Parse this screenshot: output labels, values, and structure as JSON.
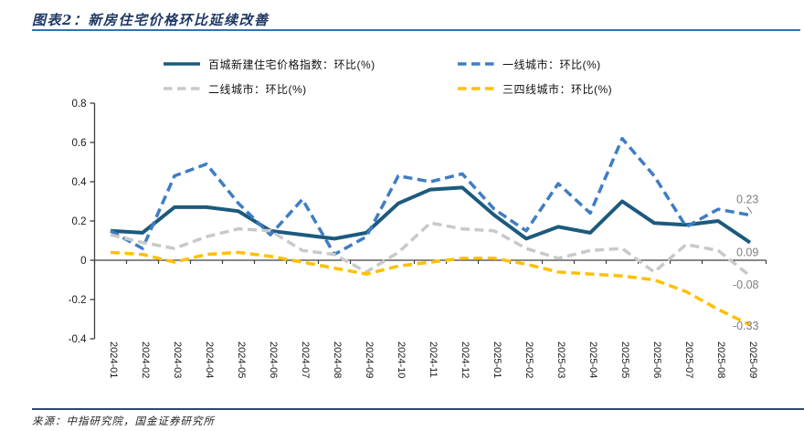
{
  "title": "图表2：新房住宅价格环比延续改善",
  "footer": {
    "source": "来源：中指研究院，国金证券研究所"
  },
  "colors": {
    "title_text": "#1F3864",
    "title_rule": "#2E74B5",
    "footer_rule": "#2A4A6B",
    "axis": "#404040",
    "tick_text": "#1a1a1a",
    "annotation_text": "#7f7f7f"
  },
  "legend": {
    "items": [
      {
        "label": "百城新建住宅价格指数：环比(%)",
        "color": "#1C5A7D",
        "dash": "solid"
      },
      {
        "label": "一线城市：环比(%)",
        "color": "#3F7DC4",
        "dash": "dashed"
      },
      {
        "label": "二线城市：环比(%)",
        "color": "#C9C9C9",
        "dash": "dashed"
      },
      {
        "label": "三四线城市：环比(%)",
        "color": "#FFC000",
        "dash": "dashed"
      }
    ]
  },
  "chart_data": {
    "type": "line",
    "categories": [
      "2024-01",
      "2024-02",
      "2024-03",
      "2024-04",
      "2024-05",
      "2024-06",
      "2024-07",
      "2024-08",
      "2024-09",
      "2024-10",
      "2024-11",
      "2024-12",
      "2025-01",
      "2025-02",
      "2025-03",
      "2025-04",
      "2025-05",
      "2025-06",
      "2025-07",
      "2025-08",
      "2025-09"
    ],
    "series": [
      {
        "name": "百城新建住宅价格指数：环比(%)",
        "color": "#1C5A7D",
        "style": "solid",
        "values": [
          0.15,
          0.14,
          0.27,
          0.27,
          0.25,
          0.15,
          0.13,
          0.11,
          0.14,
          0.29,
          0.36,
          0.37,
          0.23,
          0.11,
          0.17,
          0.14,
          0.3,
          0.19,
          0.18,
          0.2,
          0.09
        ]
      },
      {
        "name": "一线城市：环比(%)",
        "color": "#3F7DC4",
        "style": "dashed",
        "values": [
          0.15,
          0.06,
          0.43,
          0.49,
          0.29,
          0.13,
          0.31,
          0.03,
          0.12,
          0.43,
          0.4,
          0.44,
          0.26,
          0.15,
          0.39,
          0.24,
          0.62,
          0.43,
          0.17,
          0.26,
          0.23
        ]
      },
      {
        "name": "二线城市：环比(%)",
        "color": "#C9C9C9",
        "style": "dashed",
        "values": [
          0.13,
          0.09,
          0.06,
          0.12,
          0.16,
          0.15,
          0.05,
          0.03,
          -0.06,
          0.04,
          0.19,
          0.16,
          0.15,
          0.06,
          0.01,
          0.05,
          0.06,
          -0.06,
          0.08,
          0.05,
          -0.08
        ]
      },
      {
        "name": "三四线城市：环比(%)",
        "color": "#FFC000",
        "style": "dashed",
        "values": [
          0.04,
          0.03,
          -0.01,
          0.03,
          0.04,
          0.02,
          -0.01,
          -0.04,
          -0.07,
          -0.03,
          -0.01,
          0.01,
          0.01,
          -0.02,
          -0.06,
          -0.07,
          -0.08,
          -0.1,
          -0.16,
          -0.25,
          -0.33
        ]
      }
    ],
    "ylim": [
      -0.4,
      0.8
    ],
    "yticks": [
      0.8,
      0.6,
      0.4,
      0.2,
      0,
      -0.2,
      -0.4
    ],
    "grid": false,
    "legend_position": "top",
    "annotations": [
      {
        "text": "0.23",
        "series": "一线城市：环比(%)",
        "category": "2025-09",
        "value": 0.23
      },
      {
        "text": "0.09",
        "series": "百城新建住宅价格指数：环比(%)",
        "category": "2025-09",
        "value": 0.09
      },
      {
        "text": "-0.08",
        "series": "二线城市：环比(%)",
        "category": "2025-09",
        "value": -0.08
      },
      {
        "text": "-0.33",
        "series": "三四线城市：环比(%)",
        "category": "2025-09",
        "value": -0.33
      }
    ]
  }
}
